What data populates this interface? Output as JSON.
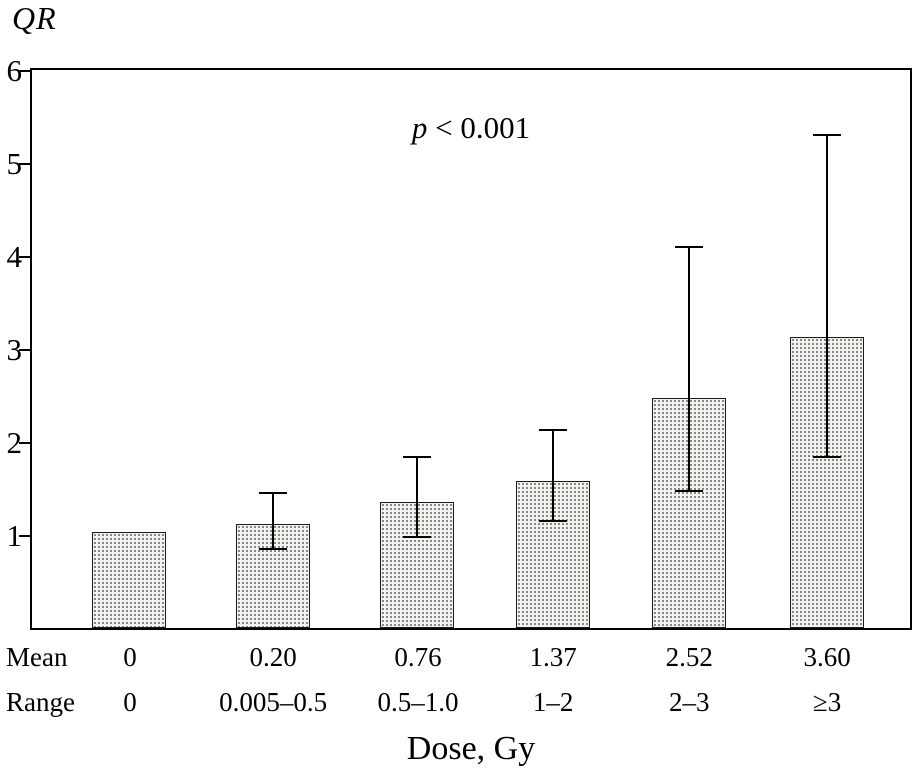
{
  "chart_data": {
    "type": "bar",
    "title": "",
    "ylabel": "QR",
    "xlabel": "Dose, Gy",
    "ylim": [
      0,
      6
    ],
    "yticks": [
      1,
      2,
      3,
      4,
      5,
      6
    ],
    "grid": false,
    "annotation": {
      "italic": "p",
      "rest": " < 0.001"
    },
    "row_labels": {
      "mean": "Mean",
      "range": "Range"
    },
    "categories": [
      {
        "mean": "0",
        "range": "0",
        "value": 1.03,
        "err_low": null,
        "err_high": null
      },
      {
        "mean": "0.20",
        "range": "0.005–0.5",
        "value": 1.12,
        "err_low": 0.85,
        "err_high": 1.45
      },
      {
        "mean": "0.76",
        "range": "0.5–1.0",
        "value": 1.36,
        "err_low": 0.98,
        "err_high": 1.84
      },
      {
        "mean": "1.37",
        "range": "1–2",
        "value": 1.58,
        "err_low": 1.15,
        "err_high": 2.13
      },
      {
        "mean": "2.52",
        "range": "2–3",
        "value": 2.47,
        "err_low": 1.47,
        "err_high": 4.1
      },
      {
        "mean": "3.60",
        "range": "≥3",
        "value": 3.13,
        "err_low": 1.84,
        "err_high": 5.3
      }
    ],
    "bar_fill": "#f4f2ef",
    "axis_color": "#000000"
  }
}
